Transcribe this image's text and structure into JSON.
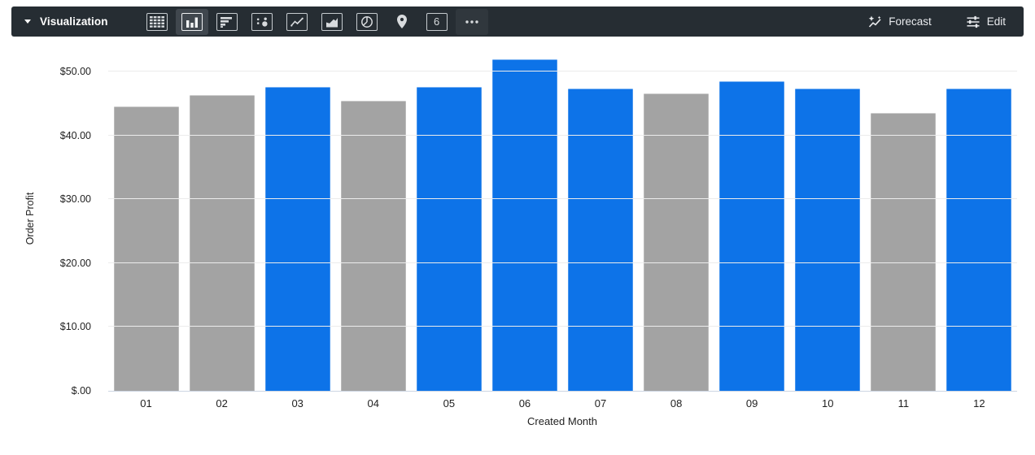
{
  "toolbar": {
    "title": "Visualization",
    "forecast_label": "Forecast",
    "edit_label": "Edit",
    "single_value_glyph": "6",
    "chart_type_icons": [
      {
        "name": "table-icon",
        "selected": false
      },
      {
        "name": "column-chart-icon",
        "selected": true
      },
      {
        "name": "bar-chart-icon",
        "selected": false
      },
      {
        "name": "scatter-chart-icon",
        "selected": false
      },
      {
        "name": "line-chart-icon",
        "selected": false
      },
      {
        "name": "area-chart-icon",
        "selected": false
      },
      {
        "name": "pie-chart-icon",
        "selected": false
      },
      {
        "name": "map-pin-icon",
        "selected": false
      },
      {
        "name": "single-value-icon",
        "selected": false
      },
      {
        "name": "more-options-icon",
        "selected": false
      }
    ],
    "colors": {
      "bar_bg": "#262d33",
      "selected_icon_bg": "#40474e",
      "icon_stroke": "#d8dbde"
    }
  },
  "chart_data": {
    "type": "bar",
    "title": "",
    "xlabel": "Created Month",
    "ylabel": "Order Profit",
    "categories": [
      "01",
      "02",
      "03",
      "04",
      "05",
      "06",
      "07",
      "08",
      "09",
      "10",
      "11",
      "12"
    ],
    "values": [
      44.5,
      46.4,
      47.6,
      45.5,
      47.6,
      52.0,
      47.3,
      46.6,
      48.5,
      47.3,
      43.6,
      47.3
    ],
    "bar_colors": [
      "gray",
      "gray",
      "blue",
      "gray",
      "blue",
      "blue",
      "blue",
      "gray",
      "blue",
      "blue",
      "gray",
      "blue"
    ],
    "color_map": {
      "blue": "#0d73e8",
      "gray": "#a3a3a3"
    },
    "y_ticks": [
      {
        "value": 50,
        "label": "$50.00"
      },
      {
        "value": 40,
        "label": "$40.00"
      },
      {
        "value": 30,
        "label": "$30.00"
      },
      {
        "value": 20,
        "label": "$20.00"
      },
      {
        "value": 10,
        "label": "$10.00"
      },
      {
        "value": 0,
        "label": "$.00"
      }
    ],
    "ylim": [
      0,
      54.1
    ],
    "grid": true,
    "legend": "none"
  }
}
